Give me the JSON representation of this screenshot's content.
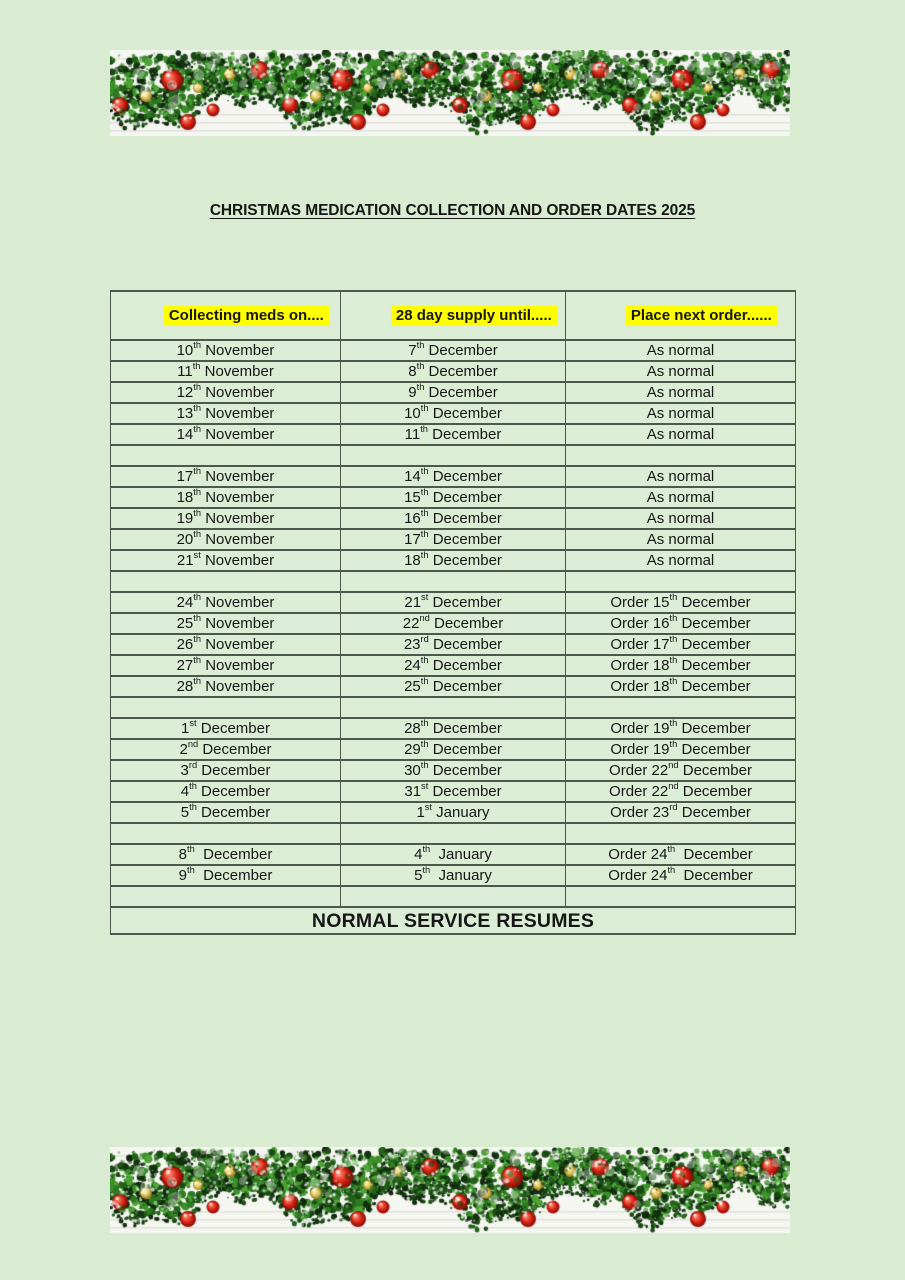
{
  "title": "CHRISTMAS MEDICATION COLLECTION AND ORDER DATES 2025",
  "decorations": {
    "garland_top": "christmas-garland-banner",
    "garland_bottom": "christmas-garland-banner"
  },
  "colors": {
    "page_background": "#d9ebd1",
    "cell_background": "#dcedd5",
    "table_border": "#4d574b",
    "text": "#161616",
    "header_highlight": "#ffff00",
    "garland_red": "#c01f12",
    "garland_gold": "#d6b84a",
    "garland_green": "#2e7a21"
  },
  "table": {
    "headers": [
      "Collecting meds on....",
      "28 day supply until.....",
      "Place next order......"
    ],
    "rows": [
      [
        "10th November",
        "7th December",
        "As normal"
      ],
      [
        "11th November",
        "8th December",
        "As normal"
      ],
      [
        "12th November",
        "9th December",
        "As normal"
      ],
      [
        "13th November",
        "10th December",
        "As normal"
      ],
      [
        "14th November",
        "11th December",
        "As normal"
      ],
      [
        "",
        "",
        ""
      ],
      [
        "17th November",
        "14th December",
        "As normal"
      ],
      [
        "18th November",
        "15th December",
        "As normal"
      ],
      [
        "19th November",
        "16th December",
        "As normal"
      ],
      [
        "20th November",
        "17th December",
        "As normal"
      ],
      [
        "21st November",
        "18th December",
        "As normal"
      ],
      [
        "",
        "",
        ""
      ],
      [
        "24th November",
        "21st December",
        "Order 15th December"
      ],
      [
        "25th November",
        "22nd December",
        "Order 16th December"
      ],
      [
        "26th November",
        "23rd December",
        "Order 17th December"
      ],
      [
        "27th November",
        "24th December",
        "Order 18th December"
      ],
      [
        "28th November",
        "25th December",
        "Order 18th December"
      ],
      [
        "",
        "",
        ""
      ],
      [
        "1st December",
        "28th December",
        "Order 19th December"
      ],
      [
        "2nd December",
        "29th December",
        "Order 19th December"
      ],
      [
        "3rd December",
        "30th December",
        "Order 22nd December"
      ],
      [
        "4th December",
        "31st December",
        "Order 22nd December"
      ],
      [
        "5th December",
        "1st January",
        "Order 23rd December"
      ],
      [
        "",
        "",
        ""
      ],
      [
        "8th  December",
        "4th  January",
        "Order 24th  December"
      ],
      [
        "9th  December",
        "5th  January",
        "Order 24th  December"
      ],
      [
        "",
        "",
        ""
      ]
    ],
    "footer": "NORMAL SERVICE RESUMES"
  }
}
